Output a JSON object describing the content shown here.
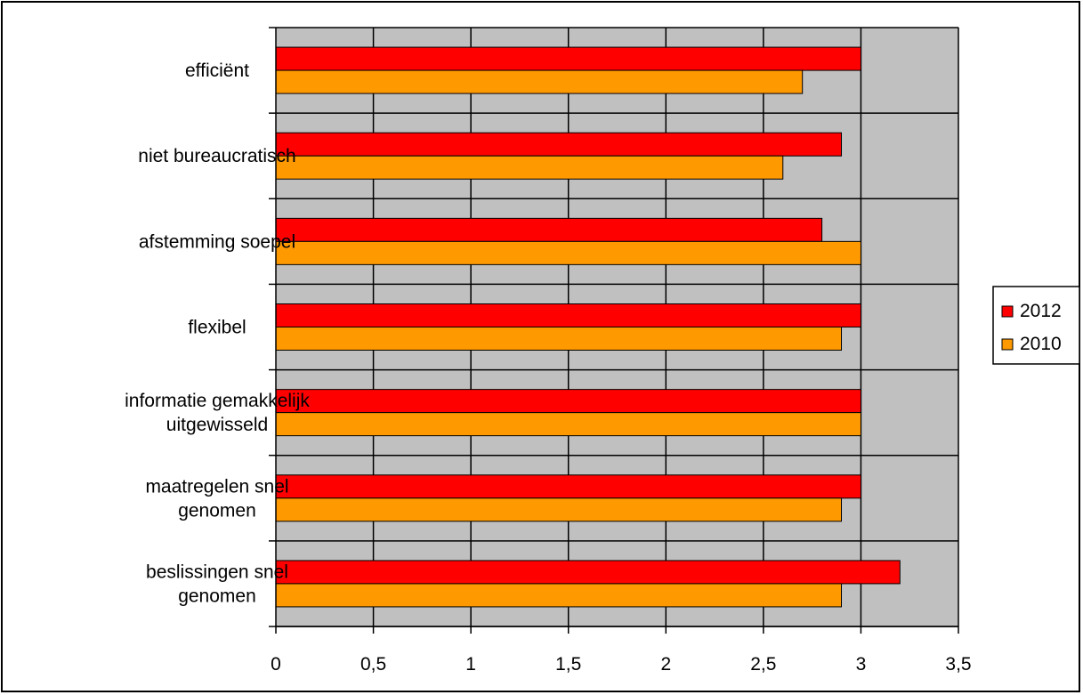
{
  "chart_data": {
    "type": "bar",
    "orientation": "horizontal",
    "categories": [
      [
        "efficiënt"
      ],
      [
        "niet bureaucratisch"
      ],
      [
        "afstemming soepel"
      ],
      [
        "flexibel"
      ],
      [
        "informatie gemakkelijk",
        "uitgewisseld"
      ],
      [
        "maatregelen snel",
        "genomen"
      ],
      [
        "beslissingen snel",
        "genomen"
      ]
    ],
    "series": [
      {
        "name": "2012",
        "color": "#ff0000",
        "values": [
          3.0,
          2.9,
          2.8,
          3.0,
          3.0,
          3.0,
          3.2
        ]
      },
      {
        "name": "2010",
        "color": "#ff9900",
        "values": [
          2.7,
          2.6,
          3.0,
          2.9,
          3.0,
          2.9,
          2.9
        ]
      }
    ],
    "xlim": [
      0,
      3.5
    ],
    "xticks": [
      0,
      0.5,
      1,
      1.5,
      2,
      2.5,
      3,
      3.5
    ],
    "xtick_labels": [
      "0",
      "0,5",
      "1",
      "1,5",
      "2",
      "2,5",
      "3",
      "3,5"
    ],
    "plot_background": "#c0c0c0",
    "grid": true,
    "legend_position": "right"
  }
}
